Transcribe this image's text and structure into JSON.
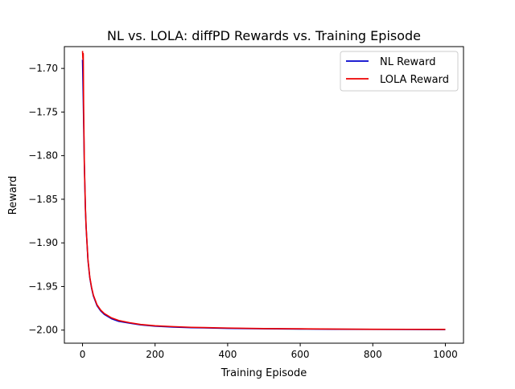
{
  "chart_data": {
    "type": "line",
    "title": "NL vs. LOLA: diffPD Rewards vs. Training Episode",
    "xlabel": "Training Episode",
    "ylabel": "Reward",
    "xlim": [
      -50,
      1050
    ],
    "ylim": [
      -2.015,
      -1.675
    ],
    "xticks": [
      0,
      200,
      400,
      600,
      800,
      1000
    ],
    "xtick_labels": [
      "0",
      "200",
      "400",
      "600",
      "800",
      "1000"
    ],
    "yticks": [
      -1.7,
      -1.75,
      -1.8,
      -1.85,
      -1.9,
      -1.95,
      -2.0
    ],
    "ytick_labels": [
      "−1.70",
      "−1.75",
      "−1.80",
      "−1.85",
      "−1.90",
      "−1.95",
      "−2.00"
    ],
    "grid": false,
    "legend_position": "top-right",
    "series": [
      {
        "name": "NL Reward",
        "color": "#0000cc",
        "x": [
          0,
          2,
          5,
          8,
          10,
          15,
          20,
          25,
          30,
          40,
          50,
          60,
          80,
          100,
          130,
          160,
          200,
          250,
          300,
          400,
          500,
          600,
          700,
          800,
          900,
          1000
        ],
        "y": [
          -1.69,
          -1.735,
          -1.81,
          -1.862,
          -1.883,
          -1.92,
          -1.94,
          -1.952,
          -1.961,
          -1.972,
          -1.978,
          -1.982,
          -1.987,
          -1.99,
          -1.992,
          -1.994,
          -1.9955,
          -1.9965,
          -1.9972,
          -1.998,
          -1.9985,
          -1.9988,
          -1.999,
          -1.9992,
          -1.9993,
          -1.9994
        ]
      },
      {
        "name": "LOLA Reward",
        "color": "#ee0000",
        "x": [
          0,
          1,
          2,
          3,
          5,
          8,
          10,
          15,
          20,
          25,
          30,
          40,
          50,
          60,
          80,
          100,
          130,
          160,
          200,
          250,
          300,
          400,
          500,
          600,
          700,
          800,
          900,
          1000
        ],
        "y": [
          -1.68,
          -1.689,
          -1.683,
          -1.74,
          -1.808,
          -1.86,
          -1.882,
          -1.919,
          -1.939,
          -1.951,
          -1.96,
          -1.971,
          -1.977,
          -1.981,
          -1.986,
          -1.989,
          -1.9915,
          -1.9935,
          -1.995,
          -1.996,
          -1.9968,
          -1.9976,
          -1.9982,
          -1.9985,
          -1.9988,
          -1.999,
          -1.9991,
          -1.9992
        ]
      }
    ]
  }
}
